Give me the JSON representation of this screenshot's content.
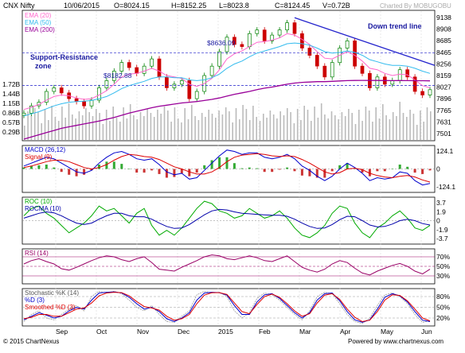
{
  "header": {
    "symbol": "CNX Nifty",
    "date": "10/06/2015",
    "open": "O=8024.15",
    "high": "H=8152.25",
    "low": "L=8023.8",
    "close": "C=8124.45",
    "volume": "V=0.72B",
    "charted_by": "Charted By MOBUGOBU"
  },
  "footer": {
    "copyright": "© 2015 ChartNexus",
    "powered": "Powered by www.chartnexus.com"
  },
  "colors": {
    "up": "#008000",
    "down": "#cc0000",
    "ema20": "#ff66cc",
    "ema50": "#33bbee",
    "ema200": "#990099",
    "trend": "#2222cc",
    "macd": "#0000cc",
    "signal": "#dd0000",
    "roc": "#00aa00",
    "rocma": "#0000aa",
    "rsi": "#990066",
    "stoch_k": "#999999",
    "stoch_d": "#0000cc",
    "stoch_sd": "#dd0000"
  },
  "chart_data": [
    {
      "type": "candlestick",
      "panel": "price",
      "legend": [
        {
          "label": "EMA (20)",
          "color": "#ff66cc"
        },
        {
          "label": "EMA (50)",
          "color": "#33bbee"
        },
        {
          "label": "EMA (200)",
          "color": "#990099"
        }
      ],
      "yticks": [
        "9138",
        "8908",
        "8685",
        "8465",
        "8256",
        "8159",
        "8027",
        "7896",
        "7765",
        "7631",
        "7501"
      ],
      "ylim": [
        7440,
        9200
      ],
      "vol_ticks": [
        "1.72B",
        "1.44B",
        "1.15B",
        "0.86B",
        "0.57B",
        "0.29B"
      ],
      "x_labels": [
        "Sep",
        "Oct",
        "Nov",
        "Dec",
        "2015",
        "Feb",
        "Mar",
        "Apr",
        "May",
        "Jun"
      ],
      "annotations": {
        "support_resistance": "Support-Resistance zone",
        "downtrend": "Down trend line",
        "level1": "$8636.09",
        "level2": "$8182.88"
      },
      "levels": [
        8636.09,
        8182.88
      ],
      "close_path": [
        7800,
        7900,
        7950,
        8100,
        8150,
        8080,
        8000,
        7960,
        7900,
        7980,
        8150,
        8250,
        8380,
        8500,
        8430,
        8350,
        8450,
        8550,
        8300,
        8150,
        8200,
        8250,
        8000,
        8100,
        8320,
        8450,
        8650,
        8850,
        8750,
        8720,
        8900,
        8950,
        8800,
        8880,
        8950,
        9050,
        8900,
        8700,
        8600,
        8450,
        8300,
        8500,
        8700,
        8800,
        8450,
        8350,
        8150,
        8300,
        8200,
        8250,
        8400,
        8300,
        8100,
        8050,
        8124
      ],
      "ema20": [
        7850,
        7880,
        7920,
        7980,
        8030,
        8050,
        8040,
        8010,
        7990,
        8000,
        8050,
        8110,
        8200,
        8300,
        8340,
        8350,
        8380,
        8420,
        8380,
        8320,
        8300,
        8280,
        8200,
        8170,
        8210,
        8280,
        8400,
        8550,
        8620,
        8660,
        8720,
        8780,
        8790,
        8810,
        8840,
        8900,
        8880,
        8820,
        8750,
        8650,
        8560,
        8550,
        8600,
        8650,
        8600,
        8520,
        8420,
        8400,
        8350,
        8320,
        8340,
        8330,
        8260,
        8180,
        8150
      ],
      "ema50": [
        7760,
        7790,
        7820,
        7860,
        7900,
        7930,
        7950,
        7960,
        7965,
        7975,
        8000,
        8030,
        8080,
        8140,
        8180,
        8210,
        8240,
        8280,
        8300,
        8300,
        8290,
        8290,
        8260,
        8250,
        8260,
        8290,
        8340,
        8420,
        8480,
        8520,
        8580,
        8630,
        8660,
        8690,
        8720,
        8760,
        8770,
        8760,
        8740,
        8700,
        8650,
        8630,
        8640,
        8660,
        8640,
        8600,
        8540,
        8510,
        8480,
        8460,
        8460,
        8450,
        8420,
        8380,
        8350
      ],
      "ema200": [
        7440,
        7470,
        7500,
        7530,
        7560,
        7590,
        7610,
        7630,
        7650,
        7670,
        7690,
        7715,
        7740,
        7770,
        7800,
        7825,
        7850,
        7875,
        7895,
        7910,
        7925,
        7940,
        7950,
        7960,
        7975,
        7990,
        8010,
        8035,
        8060,
        8080,
        8100,
        8125,
        8145,
        8160,
        8180,
        8200,
        8215,
        8225,
        8230,
        8235,
        8235,
        8240,
        8245,
        8250,
        8252,
        8253,
        8252,
        8252,
        8251,
        8250,
        8251,
        8250,
        8249,
        8248,
        8246
      ]
    },
    {
      "type": "line",
      "panel": "macd",
      "legend": [
        {
          "label": "MACD (26,12)",
          "color": "#0000cc"
        },
        {
          "label": "Signal (9)",
          "color": "#dd0000"
        }
      ],
      "yticks": [
        "124.1",
        "0",
        "-124.1"
      ],
      "ylim": [
        -150,
        150
      ],
      "macd": [
        20,
        40,
        60,
        80,
        70,
        40,
        10,
        -20,
        -30,
        -10,
        40,
        80,
        110,
        120,
        100,
        70,
        60,
        70,
        30,
        -20,
        -40,
        -30,
        -70,
        -60,
        -10,
        40,
        90,
        130,
        120,
        100,
        110,
        110,
        80,
        70,
        80,
        100,
        70,
        20,
        -10,
        -50,
        -80,
        -50,
        0,
        40,
        10,
        -30,
        -80,
        -60,
        -70,
        -60,
        -20,
        -30,
        -80,
        -110,
        -100
      ],
      "signal": [
        10,
        20,
        35,
        50,
        60,
        60,
        50,
        30,
        10,
        0,
        10,
        30,
        60,
        85,
        100,
        95,
        85,
        80,
        65,
        40,
        15,
        0,
        -20,
        -35,
        -35,
        -20,
        10,
        50,
        80,
        95,
        100,
        105,
        100,
        90,
        85,
        90,
        85,
        65,
        40,
        10,
        -20,
        -35,
        -25,
        0,
        5,
        -5,
        -30,
        -45,
        -55,
        -60,
        -50,
        -45,
        -55,
        -75,
        -90
      ]
    },
    {
      "type": "line",
      "panel": "roc",
      "legend": [
        {
          "label": "ROC (10)",
          "color": "#00aa00"
        },
        {
          "label": "ROCMA (10)",
          "color": "#0000aa"
        }
      ],
      "yticks": [
        "3.7",
        "1.9",
        "0",
        "-1.9",
        "-3.7"
      ],
      "ylim": [
        -4.5,
        4.5
      ],
      "roc": [
        1.0,
        2.5,
        3.0,
        1.5,
        0.5,
        -1.0,
        -2.5,
        -1.5,
        -0.5,
        1.0,
        3.0,
        2.0,
        2.5,
        1.0,
        -0.5,
        1.5,
        2.5,
        -1.0,
        -3.0,
        -2.0,
        -3.0,
        -1.5,
        0.5,
        2.5,
        4.0,
        3.5,
        2.0,
        1.5,
        0.5,
        1.0,
        2.5,
        1.5,
        0.5,
        1.0,
        2.0,
        0.5,
        -1.5,
        -3.0,
        -3.5,
        -2.5,
        -1.0,
        1.5,
        3.0,
        2.5,
        -0.5,
        -2.5,
        -3.5,
        -1.5,
        -0.5,
        1.0,
        2.0,
        0.5,
        -1.5,
        -2.0,
        -1.0
      ],
      "rocma": [
        0.5,
        1.0,
        1.5,
        1.8,
        1.6,
        1.0,
        0.2,
        -0.5,
        -0.8,
        -0.5,
        0.3,
        1.0,
        1.5,
        1.5,
        1.0,
        0.8,
        0.8,
        0.3,
        -0.5,
        -1.2,
        -1.6,
        -1.5,
        -0.8,
        0.2,
        1.2,
        2.0,
        2.3,
        2.2,
        1.8,
        1.5,
        1.4,
        1.3,
        1.2,
        1.1,
        1.1,
        0.9,
        0.3,
        -0.5,
        -1.2,
        -1.6,
        -1.5,
        -0.8,
        0.2,
        0.9,
        0.8,
        0.0,
        -0.9,
        -1.3,
        -1.2,
        -0.7,
        0.0,
        0.3,
        0.0,
        -0.6,
        -0.9
      ]
    },
    {
      "type": "line",
      "panel": "rsi",
      "legend": [
        {
          "label": "RSI (14)",
          "color": "#990066"
        }
      ],
      "yticks": [
        "70%",
        "50%",
        "30%"
      ],
      "ylim": [
        15,
        85
      ],
      "rsi": [
        55,
        62,
        66,
        60,
        55,
        45,
        42,
        48,
        55,
        62,
        68,
        72,
        70,
        64,
        60,
        66,
        70,
        58,
        44,
        42,
        40,
        48,
        55,
        62,
        70,
        74,
        72,
        66,
        64,
        68,
        72,
        68,
        62,
        60,
        66,
        72,
        60,
        48,
        42,
        38,
        44,
        55,
        62,
        58,
        46,
        36,
        32,
        40,
        46,
        52,
        56,
        50,
        40,
        34,
        44
      ]
    },
    {
      "type": "line",
      "panel": "stochastic",
      "legend": [
        {
          "label": "Stochastic %K (14)",
          "color": "#999999"
        },
        {
          "label": "%D (3)",
          "color": "#0000cc"
        },
        {
          "label": "Smoothed %D (3)",
          "color": "#dd0000"
        }
      ],
      "yticks": [
        "80%",
        "50%",
        "20%"
      ],
      "ylim": [
        0,
        100
      ],
      "k": [
        10,
        30,
        40,
        20,
        15,
        30,
        45,
        55,
        40,
        80,
        95,
        90,
        95,
        88,
        70,
        50,
        40,
        55,
        30,
        10,
        8,
        25,
        40,
        85,
        95,
        90,
        92,
        80,
        40,
        20,
        35,
        75,
        90,
        85,
        70,
        50,
        30,
        15,
        40,
        80,
        92,
        88,
        60,
        30,
        10,
        5,
        20,
        55,
        85,
        90,
        80,
        60,
        30,
        8,
        12
      ],
      "d": [
        15,
        25,
        35,
        28,
        20,
        25,
        40,
        50,
        45,
        70,
        90,
        92,
        93,
        90,
        78,
        60,
        45,
        50,
        38,
        18,
        10,
        20,
        35,
        70,
        90,
        92,
        91,
        84,
        55,
        30,
        30,
        65,
        85,
        88,
        75,
        55,
        35,
        20,
        35,
        70,
        88,
        90,
        68,
        38,
        15,
        8,
        15,
        45,
        78,
        88,
        82,
        65,
        38,
        14,
        10
      ],
      "sd": [
        18,
        22,
        30,
        30,
        25,
        25,
        35,
        45,
        48,
        62,
        82,
        90,
        92,
        91,
        82,
        66,
        52,
        48,
        42,
        25,
        14,
        18,
        30,
        60,
        84,
        91,
        91,
        86,
        62,
        38,
        32,
        58,
        80,
        87,
        78,
        60,
        40,
        25,
        32,
        62,
        84,
        88,
        72,
        45,
        22,
        10,
        14,
        38,
        70,
        85,
        83,
        68,
        45,
        20,
        12
      ]
    }
  ]
}
